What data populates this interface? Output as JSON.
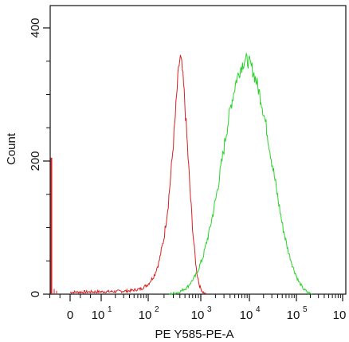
{
  "chart_data": {
    "type": "histogram",
    "xlabel": "PE Y585-PE-A",
    "ylabel": "Count",
    "x_scale": "biexponential",
    "x_tick_labels": [
      "0",
      "10",
      "10",
      "10",
      "10",
      "10",
      "10"
    ],
    "x_tick_exponents": [
      "",
      "1",
      "2",
      "3",
      "4",
      "5",
      "6"
    ],
    "x_tick_values": [
      0,
      10,
      100,
      1000,
      10000,
      100000,
      1000000
    ],
    "y_tick_labels": [
      "0",
      "200",
      "400"
    ],
    "y_tick_values": [
      0,
      200,
      400
    ],
    "ylim": [
      0,
      400
    ],
    "grid": false,
    "series": [
      {
        "color": "#d62020",
        "points": [
          [
            0,
            3
          ],
          [
            20,
            4
          ],
          [
            40,
            5
          ],
          [
            70,
            8
          ],
          [
            100,
            15
          ],
          [
            130,
            28
          ],
          [
            160,
            48
          ],
          [
            200,
            85
          ],
          [
            240,
            135
          ],
          [
            280,
            195
          ],
          [
            320,
            255
          ],
          [
            360,
            315
          ],
          [
            390,
            348
          ],
          [
            410,
            355
          ],
          [
            440,
            340
          ],
          [
            480,
            305
          ],
          [
            540,
            240
          ],
          [
            620,
            160
          ],
          [
            720,
            85
          ],
          [
            830,
            35
          ],
          [
            950,
            12
          ],
          [
            1080,
            4
          ],
          [
            1200,
            1
          ],
          [
            1300,
            0
          ]
        ]
      },
      {
        "color": "#2bd22b",
        "points": [
          [
            250,
            0
          ],
          [
            380,
            3
          ],
          [
            550,
            10
          ],
          [
            800,
            28
          ],
          [
            1100,
            55
          ],
          [
            1500,
            95
          ],
          [
            2000,
            140
          ],
          [
            2600,
            190
          ],
          [
            3300,
            240
          ],
          [
            4200,
            285
          ],
          [
            5300,
            320
          ],
          [
            6600,
            340
          ],
          [
            8000,
            352
          ],
          [
            9500,
            350
          ],
          [
            11500,
            338
          ],
          [
            14000,
            320
          ],
          [
            18000,
            290
          ],
          [
            23000,
            250
          ],
          [
            30000,
            200
          ],
          [
            39000,
            150
          ],
          [
            50000,
            105
          ],
          [
            65000,
            68
          ],
          [
            85000,
            40
          ],
          [
            110000,
            20
          ],
          [
            140000,
            8
          ],
          [
            180000,
            2
          ],
          [
            220000,
            0
          ]
        ]
      }
    ]
  }
}
